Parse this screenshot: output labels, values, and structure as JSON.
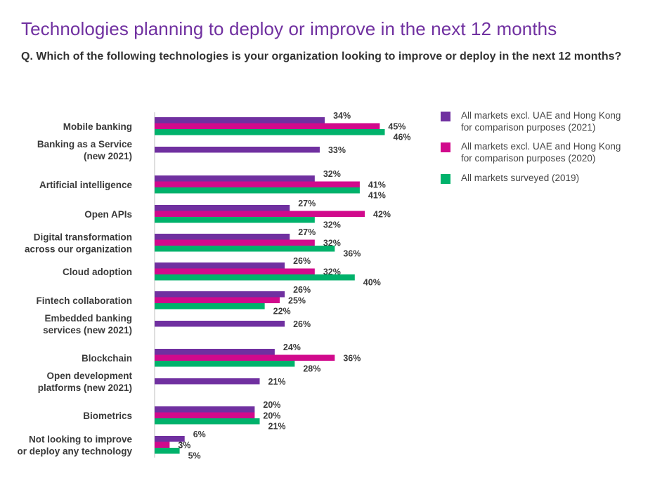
{
  "header": {
    "title": "Technologies planning to deploy or improve in the next 12 months",
    "subtitle": "Q. Which of the following technologies is your organization looking to improve or deploy in the next 12 months?"
  },
  "chart_data": {
    "type": "bar",
    "orientation": "horizontal",
    "value_suffix": "%",
    "categories": [
      [
        "Mobile banking"
      ],
      [
        "Banking as a Service",
        "(new 2021)"
      ],
      [
        "Artificial intelligence"
      ],
      [
        "Open APIs"
      ],
      [
        "Digital transformation",
        "across our organization"
      ],
      [
        "Cloud adoption"
      ],
      [
        "Fintech collaboration"
      ],
      [
        "Embedded banking",
        "services (new 2021)"
      ],
      [
        "Blockchain"
      ],
      [
        "Open development",
        "platforms (new 2021)"
      ],
      [
        "Biometrics"
      ],
      [
        "Not looking to improve",
        "or deploy any technology"
      ]
    ],
    "series": [
      {
        "name": [
          "All markets excl. UAE and Hong Kong",
          "for comparison purposes (2021)"
        ],
        "color": "#7030A0",
        "values": [
          34,
          33,
          32,
          27,
          27,
          26,
          26,
          26,
          24,
          21,
          20,
          6
        ]
      },
      {
        "name": [
          "All markets excl. UAE and Hong Kong",
          "for comparison purposes (2020)"
        ],
        "color": "#D10A8C",
        "values": [
          45,
          null,
          41,
          42,
          32,
          32,
          25,
          null,
          36,
          null,
          20,
          3
        ]
      },
      {
        "name": [
          "All markets surveyed (2019)"
        ],
        "color": "#00B26B",
        "values": [
          46,
          null,
          41,
          32,
          36,
          40,
          22,
          null,
          28,
          null,
          21,
          5
        ]
      }
    ],
    "xlim": [
      0,
      50
    ],
    "legend": "top-right",
    "grid": false
  }
}
